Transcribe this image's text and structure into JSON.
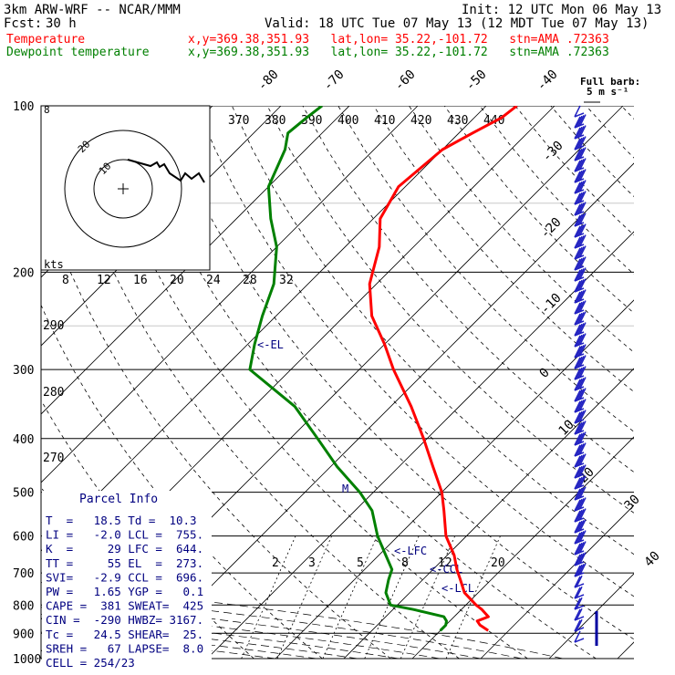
{
  "header": {
    "model": "3km ARW-WRF -- NCAR/MMM",
    "init": "Init: 12 UTC Mon 06 May 13",
    "fcst_label": "Fcst:",
    "fcst_value": "30 h",
    "valid": "Valid: 18 UTC Tue 07 May 13 (12 MDT Tue 07 May 13)",
    "temp_label": "Temperature",
    "dew_label": "Dewpoint temperature",
    "location": "x,y=369.38,351.93   lat,lon= 35.22,-101.72   stn=AMA .72363"
  },
  "barb_legend": {
    "line1": "Full barb:",
    "line2": "5 m s⁻¹"
  },
  "hodo": {
    "unit": "kts",
    "ring_labels": [
      "20",
      "10"
    ]
  },
  "parcel": {
    "title": "Parcel Info",
    "rows": [
      "T  =   18.5 Td =  10.3",
      "LI =   -2.0 LCL =  755.",
      "K  =     29 LFC =  644.",
      "TT =     55 EL  =  273.",
      "SVI=   -2.9 CCL =  696.",
      "PW =   1.65 YGP =   0.1",
      "CAPE =  381 SWEAT=  425",
      "CIN =  -290 HWBZ= 3167.",
      "Tc =   24.5 SHEAR=  25.",
      "SREH =   67 LAPSE=  8.0",
      "CELL = 254/23"
    ]
  },
  "annotations": {
    "el": "<-EL",
    "lfc": "<-LFC",
    "ccl": "<-CCL",
    "lcl": "<-LCL",
    "m": "M"
  },
  "colors": {
    "temperature": "#ff0000",
    "dewpoint": "#008000",
    "grid": "#000000",
    "wind": "#2020c0",
    "parcel": "#000080"
  },
  "chart_data": {
    "type": "line",
    "diagram": "skew-T log-p",
    "pressure_levels": [
      100,
      200,
      300,
      400,
      500,
      600,
      700,
      800,
      900,
      1000
    ],
    "isotherm_labels": [
      "-80",
      "-70",
      "-60",
      "-50",
      "-40",
      "-30",
      "-20",
      "-10",
      "0",
      "10",
      "20",
      "30",
      "40"
    ],
    "theta_labels": [
      "370",
      "380",
      "390",
      "400",
      "410",
      "420",
      "430",
      "440"
    ],
    "mixing_ratio_labels_top": [
      "8",
      "12",
      "16",
      "20",
      "24",
      "28",
      "32"
    ],
    "mixing_ratio_labels_bottom": [
      "2",
      "3",
      "5",
      "8",
      "12",
      "20"
    ],
    "theta_e_labels": [
      "290",
      "280",
      "270"
    ],
    "series": [
      {
        "name": "Temperature",
        "p": [
          890,
          870,
          855,
          840,
          815,
          800,
          760,
          720,
          690,
          650,
          600,
          540,
          500,
          450,
          400,
          350,
          300,
          270,
          240,
          210,
          180,
          160,
          140,
          120,
          112,
          105,
          100
        ],
        "t": [
          17,
          15,
          14,
          15,
          13,
          11.5,
          8,
          5.5,
          3.5,
          1,
          -3,
          -7,
          -10,
          -15,
          -20.5,
          -27,
          -35,
          -40,
          -46,
          -51,
          -55,
          -59,
          -61,
          -60,
          -58,
          -56,
          -55.5
        ]
      },
      {
        "name": "Dewpoint temperature",
        "p": [
          890,
          870,
          855,
          840,
          815,
          800,
          760,
          720,
          690,
          650,
          600,
          540,
          500,
          450,
          400,
          350,
          300,
          270,
          240,
          210,
          180,
          160,
          140,
          120,
          112,
          105,
          100
        ],
        "td": [
          10,
          10,
          9.5,
          8.5,
          3,
          -1,
          -3.5,
          -5,
          -6,
          -9,
          -13,
          -17.5,
          -22,
          -29,
          -36,
          -44,
          -56,
          -59,
          -62,
          -65,
          -70,
          -75,
          -80,
          -83,
          -85,
          -84.5,
          -84
        ]
      }
    ],
    "winds": [
      {
        "p": 105,
        "kt": 20
      },
      {
        "p": 130,
        "kt": 22
      },
      {
        "p": 160,
        "kt": 24
      },
      {
        "p": 200,
        "kt": 24
      },
      {
        "p": 250,
        "kt": 23
      },
      {
        "p": 300,
        "kt": 22
      },
      {
        "p": 400,
        "kt": 20
      },
      {
        "p": 500,
        "kt": 20
      },
      {
        "p": 600,
        "kt": 18
      },
      {
        "p": 700,
        "kt": 12
      },
      {
        "p": 800,
        "kt": 10
      },
      {
        "p": 880,
        "kt": 6
      }
    ]
  }
}
